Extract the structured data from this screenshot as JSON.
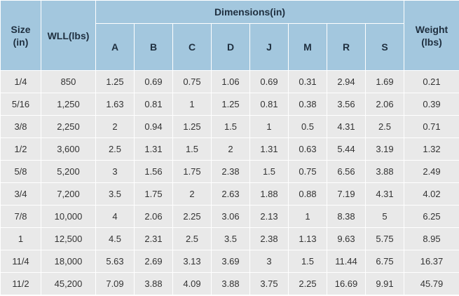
{
  "headers": {
    "size": "Size\n(in)",
    "wll": "WLL(lbs)",
    "dimensions": "Dimensions(in)",
    "weight": "Weight\n(lbs)",
    "dims": [
      "A",
      "B",
      "C",
      "D",
      "J",
      "M",
      "R",
      "S"
    ]
  },
  "rows": [
    [
      "1/4",
      "850",
      "1.25",
      "0.69",
      "0.75",
      "1.06",
      "0.69",
      "0.31",
      "2.94",
      "1.69",
      "0.21"
    ],
    [
      "5/16",
      "1,250",
      "1.63",
      "0.81",
      "1",
      "1.25",
      "0.81",
      "0.38",
      "3.56",
      "2.06",
      "0.39"
    ],
    [
      "3/8",
      "2,250",
      "2",
      "0.94",
      "1.25",
      "1.5",
      "1",
      "0.5",
      "4.31",
      "2.5",
      "0.71"
    ],
    [
      "1/2",
      "3,600",
      "2.5",
      "1.31",
      "1.5",
      "2",
      "1.31",
      "0.63",
      "5.44",
      "3.19",
      "1.32"
    ],
    [
      "5/8",
      "5,200",
      "3",
      "1.56",
      "1.75",
      "2.38",
      "1.5",
      "0.75",
      "6.56",
      "3.88",
      "2.49"
    ],
    [
      "3/4",
      "7,200",
      "3.5",
      "1.75",
      "2",
      "2.63",
      "1.88",
      "0.88",
      "7.19",
      "4.31",
      "4.02"
    ],
    [
      "7/8",
      "10,000",
      "4",
      "2.06",
      "2.25",
      "3.06",
      "2.13",
      "1",
      "8.38",
      "5",
      "6.25"
    ],
    [
      "1",
      "12,500",
      "4.5",
      "2.31",
      "2.5",
      "3.5",
      "2.38",
      "1.13",
      "9.63",
      "5.75",
      "8.95"
    ],
    [
      "11/4",
      "18,000",
      "5.63",
      "2.69",
      "3.13",
      "3.69",
      "3",
      "1.5",
      "11.44",
      "6.75",
      "16.37"
    ],
    [
      "11/2",
      "45,200",
      "7.09",
      "3.88",
      "4.09",
      "3.88",
      "3.75",
      "2.25",
      "16.69",
      "9.91",
      "45.79"
    ]
  ]
}
